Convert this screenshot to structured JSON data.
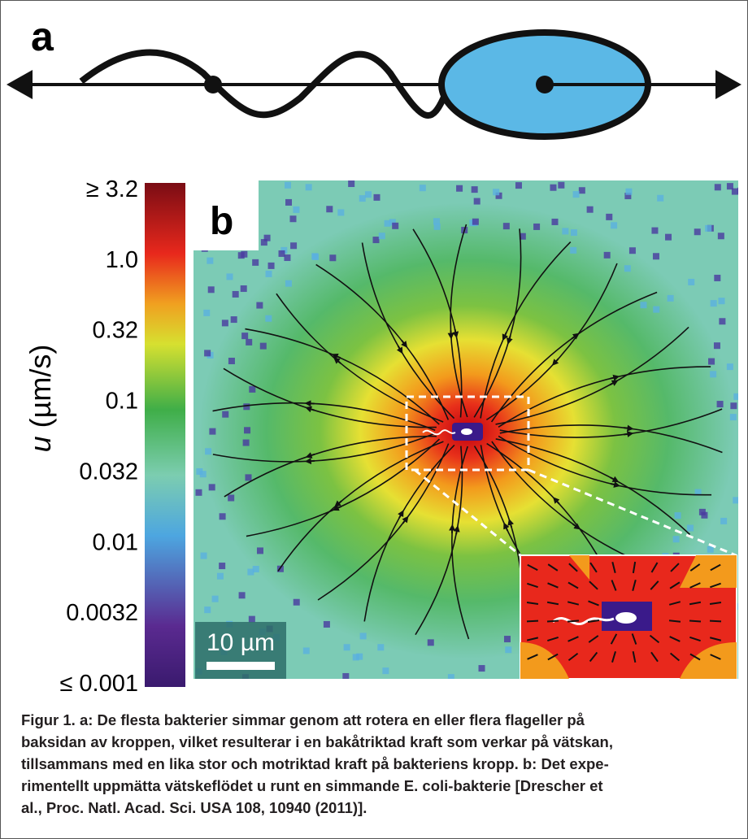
{
  "panel_a": {
    "label": "a"
  },
  "panel_b": {
    "label": "b",
    "colorbar": {
      "axis_label_symbol": "u",
      "axis_label_unit": "(µm/s)",
      "tick_labels": [
        "≥ 3.2",
        "1.0",
        "0.32",
        "0.1",
        "0.032",
        "0.01",
        "0.0032",
        "≤ 0.001"
      ]
    },
    "scale_bar": "10 µm"
  },
  "caption": {
    "lines": [
      "Figur 1. a: De flesta bakterier simmar genom att rotera en eller flera flageller på",
      "baksidan av kroppen, vilket resulterar i en bakåtriktad kraft som verkar på vätskan,",
      "tillsammans med en lika stor och motriktad kraft på bakteriens kropp. b: Det expe-",
      "rimentellt uppmätta vätskeflödet u runt en simmande E. coli-bakterie [Drescher et",
      "al., Proc. Natl. Acad. Sci. USA 108, 10940 (2011)]."
    ]
  }
}
